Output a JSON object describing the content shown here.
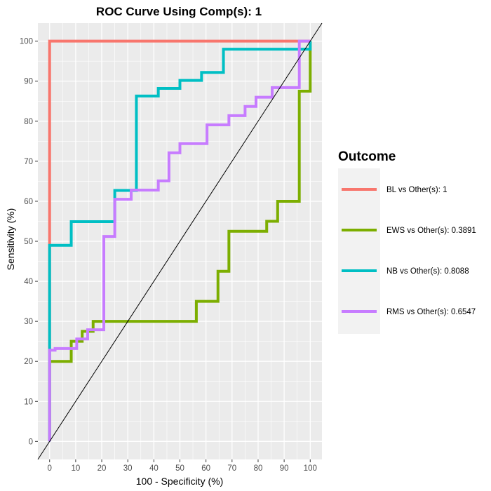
{
  "chart_data": {
    "type": "line",
    "title": "ROC Curve Using Comp(s): 1",
    "xlabel": "100 - Specificity (%)",
    "ylabel": "Sensitivity (%)",
    "xlim": [
      -4.5,
      104.5
    ],
    "ylim": [
      -4.5,
      104.5
    ],
    "xticks": [
      0,
      10,
      20,
      30,
      40,
      50,
      60,
      70,
      80,
      90,
      100
    ],
    "yticks": [
      0,
      10,
      20,
      30,
      40,
      50,
      60,
      70,
      80,
      90,
      100
    ],
    "grid": true,
    "legend": {
      "title": "Outcome",
      "position": "right"
    },
    "reference_line": {
      "from": [
        0,
        0
      ],
      "to": [
        100,
        100
      ]
    },
    "series": [
      {
        "name": "BL vs Other(s): 1",
        "color": "#F8766D",
        "x": [
          0,
          0,
          100
        ],
        "y": [
          0,
          100,
          100
        ]
      },
      {
        "name": "EWS vs Other(s): 0.3891",
        "color": "#7CAE00",
        "x": [
          0,
          0,
          8.3,
          8.3,
          12.5,
          12.5,
          16.7,
          16.7,
          56.3,
          56.3,
          64.6,
          64.6,
          68.8,
          68.8,
          83.3,
          83.3,
          87.5,
          87.5,
          95.8,
          95.8,
          100,
          100
        ],
        "y": [
          0,
          20,
          20,
          25,
          25,
          27.5,
          27.5,
          30,
          30,
          35,
          35,
          42.5,
          42.5,
          52.5,
          52.5,
          55,
          55,
          60,
          60,
          87.5,
          87.5,
          100
        ]
      },
      {
        "name": "NB vs Other(s): 0.8088",
        "color": "#00BFC4",
        "x": [
          0,
          0,
          8.3,
          8.3,
          25,
          25,
          33.3,
          33.3,
          41.7,
          41.7,
          50,
          50,
          58.3,
          58.3,
          66.7,
          66.7,
          100,
          100
        ],
        "y": [
          0,
          49,
          49,
          54.9,
          54.9,
          62.7,
          62.7,
          86.3,
          86.3,
          88.2,
          88.2,
          90.2,
          90.2,
          92.2,
          92.2,
          98,
          98,
          100
        ]
      },
      {
        "name": "RMS vs Other(s): 0.6547",
        "color": "#C77CFF",
        "x": [
          0,
          0,
          2.1,
          2.1,
          10.4,
          10.4,
          14.6,
          14.6,
          20.8,
          20.8,
          25,
          25,
          31.3,
          31.3,
          41.7,
          41.7,
          45.8,
          45.8,
          50,
          50,
          60.4,
          60.4,
          68.8,
          68.8,
          75,
          75,
          79.2,
          79.2,
          85.4,
          85.4,
          95.8,
          95.8,
          100
        ],
        "y": [
          0,
          22.8,
          22.8,
          23.2,
          23.2,
          25.6,
          25.6,
          27.9,
          27.9,
          51.2,
          51.2,
          60.5,
          60.5,
          62.8,
          62.8,
          65.1,
          65.1,
          72.1,
          72.1,
          74.4,
          74.4,
          79.1,
          79.1,
          81.4,
          81.4,
          83.7,
          83.7,
          86,
          86,
          88.4,
          88.4,
          100,
          100
        ]
      }
    ]
  }
}
